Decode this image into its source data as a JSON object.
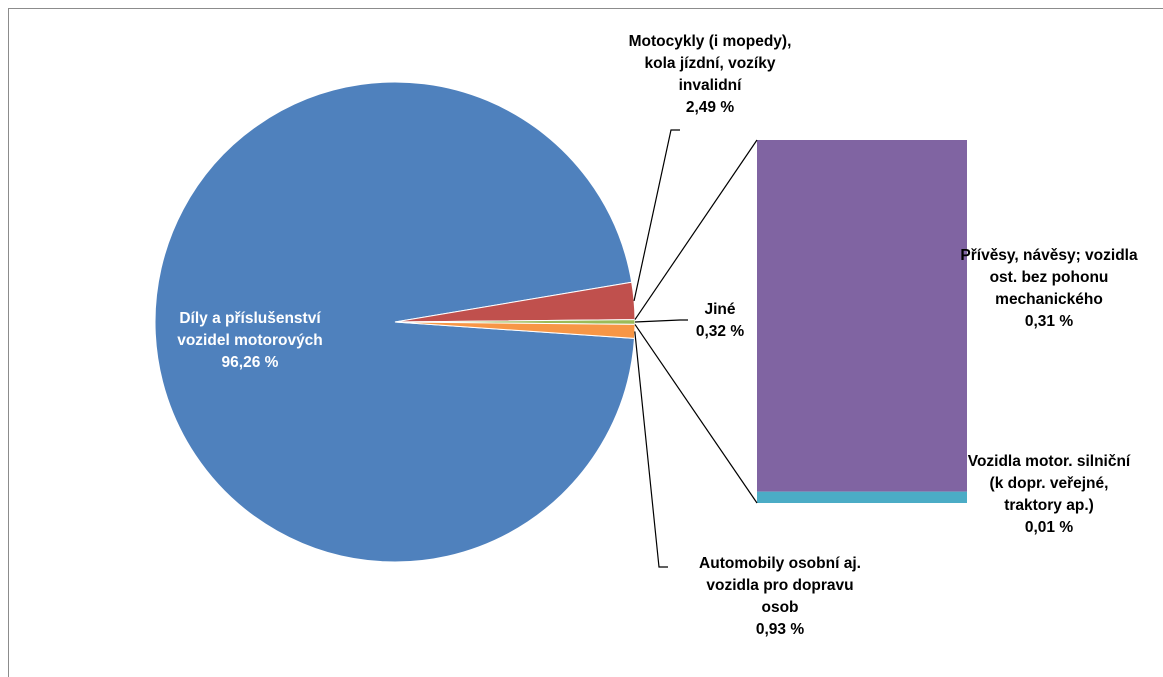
{
  "chart_data": {
    "type": "pie",
    "subtype": "bar-of-pie",
    "slices": [
      {
        "name_lines": [
          "Díly a příslušenství",
          "vozidel motorových"
        ],
        "value": 96.26,
        "value_label": "96,26 %",
        "color": "#4f81bd"
      },
      {
        "name_lines": [
          "Motocykly (i mopedy),",
          "kola jízdní, vozíky",
          "invalidní"
        ],
        "value": 2.49,
        "value_label": "2,49 %",
        "color": "#c0504d"
      },
      {
        "name_lines": [
          "Jiné"
        ],
        "value": 0.32,
        "value_label": "0,32 %",
        "color": "#9bbb59"
      },
      {
        "name_lines": [
          "Automobily osobní aj.",
          "vozidla pro dopravu",
          "osob"
        ],
        "value": 0.93,
        "value_label": "0,93 %",
        "color": "#f79646"
      }
    ],
    "breakdown": {
      "of_slice": "Jiné",
      "items": [
        {
          "name_lines": [
            "Přívěsy, návěsy; vozidla",
            "ost. bez pohonu",
            "mechanického"
          ],
          "value": 0.31,
          "value_label": "0,31 %",
          "color": "#8064a2"
        },
        {
          "name_lines": [
            "Vozidla motor. silniční",
            "(k dopr. veřejné,",
            "traktory ap.)"
          ],
          "value": 0.01,
          "value_label": "0,01 %",
          "color": "#4bacc6"
        }
      ]
    },
    "legend": "none"
  }
}
